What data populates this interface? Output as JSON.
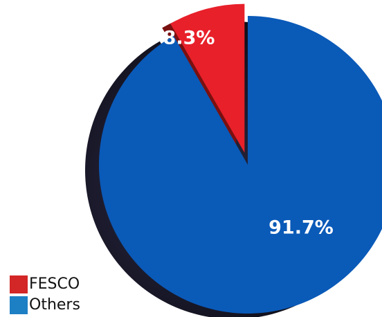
{
  "chart_data": {
    "type": "pie",
    "style": "3d-exploded",
    "slices": [
      {
        "label": "FESCO",
        "value": 8.3,
        "display": "8.3%",
        "color": "#e8202a",
        "exploded": true
      },
      {
        "label": "Others",
        "value": 91.7,
        "display": "91.7%",
        "color": "#0a5ab8",
        "exploded": false
      }
    ],
    "legend": {
      "placement": "bottom-left",
      "entries": [
        {
          "label": "FESCO",
          "color": "#d32626"
        },
        {
          "label": "Others",
          "color": "#1d7fc4"
        }
      ]
    },
    "data_label_color": "#ffffff"
  }
}
